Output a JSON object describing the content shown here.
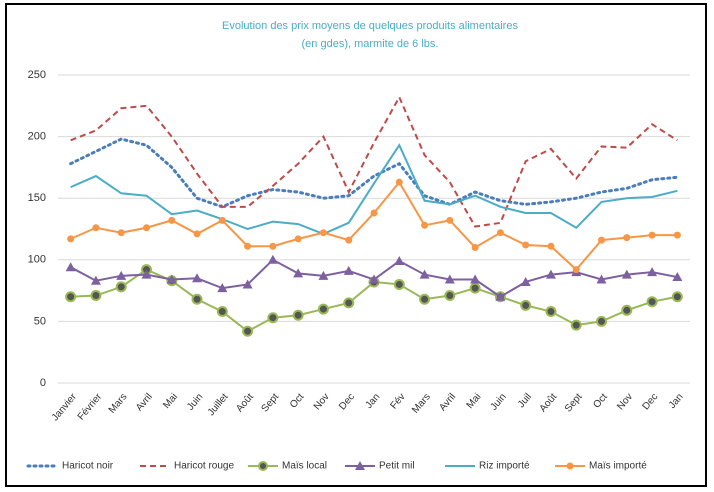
{
  "chart_data": {
    "type": "line",
    "title": "Evolution des prix moyens de quelques produits alimentaires",
    "subtitle": "(en gdes), marmite de 6 lbs.",
    "categories": [
      "Janvier",
      "Février",
      "Mars",
      "Avril",
      "Mai",
      "Juin",
      "Juillet",
      "Août",
      "Sept",
      "Oct",
      "Nov",
      "Dec",
      "Jan",
      "Fév",
      "Mars",
      "Avril",
      "Mai",
      "Juin",
      "Juil",
      "Août",
      "Sept",
      "Oct",
      "Nov",
      "Dec",
      "Jan"
    ],
    "series": [
      {
        "name": "Haricot noir",
        "color": "#4a7ebb",
        "style": "dotted",
        "marker": "none",
        "values": [
          178,
          188,
          198,
          193,
          175,
          150,
          143,
          152,
          157,
          155,
          150,
          152,
          168,
          178,
          152,
          145,
          155,
          148,
          145,
          147,
          150,
          155,
          158,
          165,
          167
        ]
      },
      {
        "name": "Haricot rouge",
        "color": "#be4b48",
        "style": "dashed",
        "marker": "none",
        "values": [
          197,
          205,
          223,
          225,
          200,
          170,
          143,
          143,
          160,
          178,
          200,
          155,
          195,
          232,
          185,
          163,
          127,
          130,
          180,
          190,
          166,
          192,
          191,
          210,
          197
        ]
      },
      {
        "name": "Maïs local",
        "color": "#98b954",
        "style": "solid",
        "marker": "circle",
        "values": [
          70,
          71,
          78,
          92,
          83,
          68,
          58,
          42,
          53,
          55,
          60,
          65,
          82,
          80,
          68,
          71,
          77,
          70,
          63,
          58,
          47,
          50,
          59,
          66,
          70
        ]
      },
      {
        "name": "Petit mil",
        "color": "#7d60a0",
        "style": "solid",
        "marker": "triangle",
        "values": [
          94,
          83,
          87,
          88,
          84,
          85,
          77,
          80,
          100,
          89,
          87,
          91,
          84,
          99,
          88,
          84,
          84,
          70,
          82,
          88,
          90,
          84,
          88,
          90,
          86
        ]
      },
      {
        "name": "Riz importé",
        "color": "#4bacc6",
        "style": "solid",
        "marker": "none",
        "values": [
          159,
          168,
          154,
          152,
          137,
          140,
          133,
          125,
          131,
          129,
          121,
          130,
          162,
          193,
          148,
          145,
          152,
          143,
          138,
          138,
          126,
          147,
          150,
          151,
          156
        ]
      },
      {
        "name": "Maïs importé",
        "color": "#f79646",
        "style": "solid",
        "marker": "dot",
        "values": [
          117,
          126,
          122,
          126,
          132,
          121,
          132,
          111,
          111,
          117,
          122,
          116,
          138,
          163,
          128,
          132,
          110,
          122,
          112,
          111,
          92,
          116,
          118,
          120,
          120
        ]
      }
    ],
    "ylim": [
      0,
      250
    ],
    "yticks": [
      0,
      50,
      100,
      150,
      200,
      250
    ],
    "grid": true,
    "legend": "bottom"
  }
}
